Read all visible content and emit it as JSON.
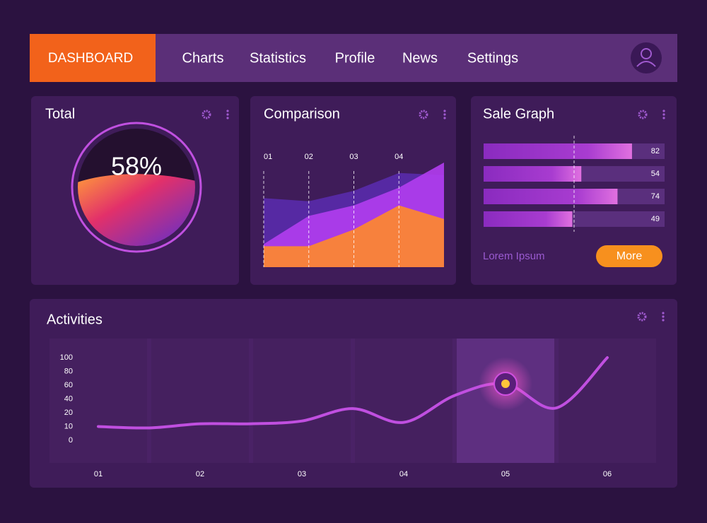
{
  "nav": {
    "brand": "DASHBOARD",
    "items": [
      "Charts",
      "Statistics",
      "Profile",
      "News",
      "Settings"
    ]
  },
  "chart_data": [
    {
      "type": "gauge",
      "title": "Total",
      "values": [
        58
      ],
      "value_labels": [
        "58%"
      ],
      "ylim": [
        0,
        100
      ]
    },
    {
      "type": "area",
      "title": "Comparison",
      "categories": [
        "01",
        "02",
        "03",
        "04",
        null
      ],
      "ylim": [
        0,
        100
      ],
      "series": [
        {
          "color": "#5b2bb0",
          "values": [
            66,
            63,
            73,
            90,
            88
          ]
        },
        {
          "color": "#b23df0",
          "values": [
            22,
            49,
            59,
            76,
            100
          ]
        },
        {
          "color": "#ff8a2a",
          "values": [
            20,
            20,
            36,
            59,
            46
          ]
        }
      ]
    },
    {
      "type": "hbar",
      "title": "Sale Graph",
      "values": [
        82,
        54,
        74,
        49
      ],
      "xlim": [
        0,
        100
      ],
      "color": "#e070e0",
      "note": "Lorem Ipsum",
      "button": "More"
    },
    {
      "type": "line",
      "title": "Activities",
      "categories": [
        "01",
        null,
        "02",
        null,
        "03",
        null,
        "04",
        null,
        "05",
        null,
        "06"
      ],
      "values": [
        10,
        9,
        12,
        12,
        14,
        26,
        13,
        45,
        62,
        27,
        100
      ],
      "color": "#c04fe0",
      "ylim": [
        0,
        100
      ],
      "yticks": [
        0,
        10,
        20,
        40,
        60,
        80,
        100
      ],
      "highlight_index": 8
    }
  ]
}
